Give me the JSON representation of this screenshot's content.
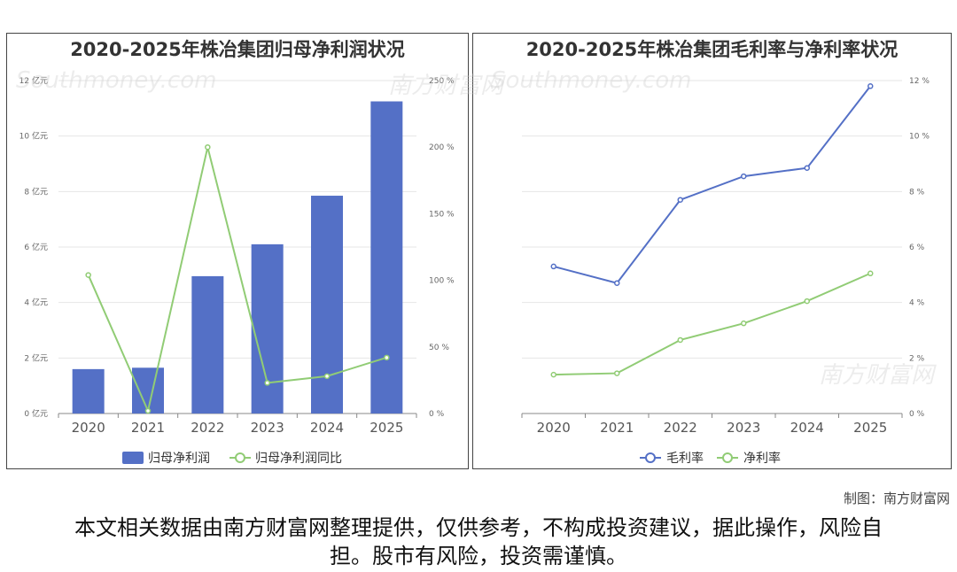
{
  "credit": "制图：南方财富网",
  "disclaimer": "本文相关数据由南方财富网整理提供，仅供参考，不构成投资建议，据此操作，风险自担。股市有风险，投资需谨慎。",
  "watermark": {
    "cn": "南方财富网",
    "en": "Southmoney.com"
  },
  "chart_data": [
    {
      "type": "bar",
      "title": "2020-2025年株冶集团归母净利润状况",
      "categories": [
        "2020",
        "2021",
        "2022",
        "2023",
        "2024",
        "2025"
      ],
      "y_ticks": [
        "0 亿元",
        "2 亿元",
        "4 亿元",
        "6 亿元",
        "8 亿元",
        "10 亿元",
        "12 亿元"
      ],
      "y2_ticks": [
        "0 %",
        "50 %",
        "100 %",
        "150 %",
        "200 %",
        "250 %"
      ],
      "ylim": [
        0,
        12
      ],
      "y2lim": [
        0,
        250
      ],
      "series": [
        {
          "name": "归母净利润",
          "type": "bar",
          "axis": "left",
          "color": "#5470c6",
          "values": [
            1.6,
            1.65,
            4.95,
            6.1,
            7.85,
            11.25
          ]
        },
        {
          "name": "归母净利润同比",
          "type": "line",
          "axis": "right",
          "color": "#91cc75",
          "values": [
            104,
            2,
            200,
            23,
            28,
            42
          ]
        }
      ],
      "legend_position": "bottom-center"
    },
    {
      "type": "line",
      "title": "2020-2025年株冶集团毛利率与净利率状况",
      "categories": [
        "2020",
        "2021",
        "2022",
        "2023",
        "2024",
        "2025"
      ],
      "y2_ticks": [
        "0 %",
        "2 %",
        "4 %",
        "6 %",
        "8 %",
        "10 %",
        "12 %"
      ],
      "y2lim": [
        0,
        12
      ],
      "series": [
        {
          "name": "毛利率",
          "color": "#5470c6",
          "values": [
            5.3,
            4.7,
            7.7,
            8.55,
            8.85,
            11.8
          ]
        },
        {
          "name": "净利率",
          "color": "#91cc75",
          "values": [
            1.4,
            1.45,
            2.65,
            3.25,
            4.05,
            5.05
          ]
        }
      ],
      "legend_position": "bottom-center"
    }
  ]
}
